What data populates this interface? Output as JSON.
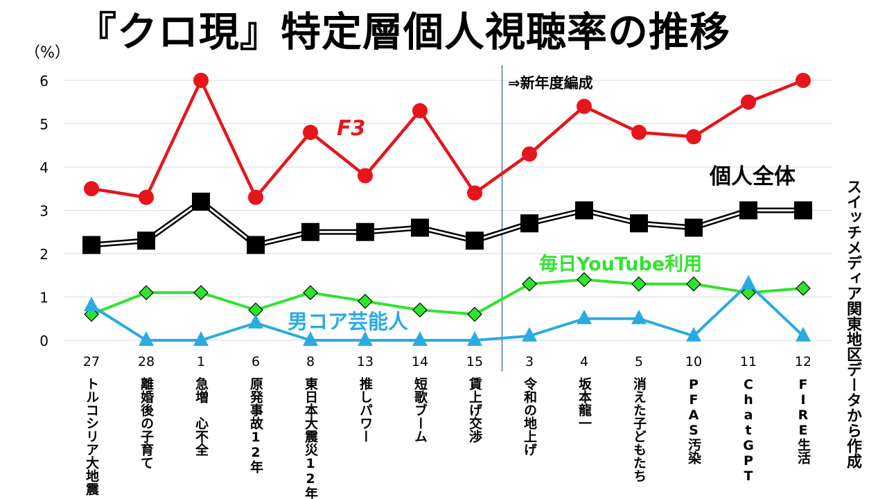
{
  "title": "『クロ現』特定層個人視聴率の推移",
  "unit_label": "（%）",
  "source_note": "スイッチメディア関東地区データから作成",
  "annotation_new_season": "⇒新年度編成",
  "colors": {
    "f3": "#e8141b",
    "all": "#000000",
    "youtube": "#2ee42e",
    "male_core": "#29abe2",
    "divider": "#2e5aa8",
    "grid": "#d9d9d9"
  },
  "chart_data": {
    "type": "line",
    "title": "『クロ現』特定層個人視聴率の推移",
    "ylabel": "（%）",
    "ylim": [
      0,
      6
    ],
    "yticks": [
      0,
      1,
      2,
      3,
      4,
      5,
      6
    ],
    "grid": true,
    "dates": [
      "27",
      "28",
      "1",
      "6",
      "8",
      "13",
      "14",
      "15",
      "3",
      "4",
      "5",
      "10",
      "11",
      "12"
    ],
    "categories": [
      "トルコシリア大地震",
      "離婚後の子育て",
      "急増　心不全",
      "原発事故12年",
      "東日本大震災12年",
      "推しパワー",
      "短歌ブーム",
      "賃上げ交渉",
      "令和の地上げ",
      "坂本龍一",
      "消えた子どもたち",
      "PFAS汚染",
      "ChatGPT",
      "FIRE生活"
    ],
    "series": [
      {
        "name": "F3",
        "marker": "circle",
        "values": [
          3.5,
          3.3,
          6.0,
          3.3,
          4.8,
          3.8,
          5.3,
          3.4,
          4.3,
          5.4,
          4.8,
          4.7,
          5.5,
          6.0
        ]
      },
      {
        "name": "個人全体",
        "marker": "square",
        "values": [
          2.2,
          2.3,
          3.2,
          2.2,
          2.5,
          2.5,
          2.6,
          2.3,
          2.7,
          3.0,
          2.7,
          2.6,
          3.0,
          3.0
        ]
      },
      {
        "name": "毎日YouTube利用",
        "marker": "diamond",
        "values": [
          0.6,
          1.1,
          1.1,
          0.7,
          1.1,
          0.9,
          0.7,
          0.6,
          1.3,
          1.4,
          1.3,
          1.3,
          1.1,
          1.2
        ]
      },
      {
        "name": "男コア芸能人",
        "marker": "triangle",
        "values": [
          0.8,
          0.0,
          0.0,
          0.4,
          0.0,
          0.0,
          0.0,
          0.0,
          0.1,
          0.5,
          0.5,
          0.1,
          1.3,
          0.1
        ]
      }
    ],
    "divider_after_index": 7
  }
}
